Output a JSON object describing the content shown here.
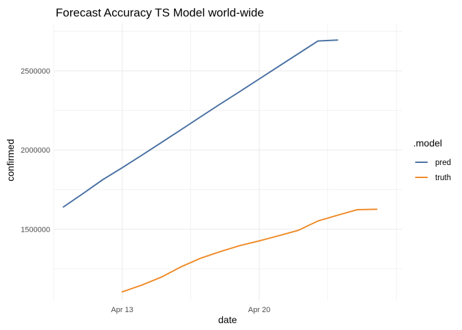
{
  "chart_data": {
    "type": "line",
    "title": "Forecast Accuracy TS Model world-wide",
    "xlabel": "date",
    "ylabel": "confirmed",
    "x_ticks": [
      {
        "day": 13,
        "label": "Apr 13"
      },
      {
        "day": 20,
        "label": "Apr 20"
      }
    ],
    "y_ticks": [
      1500000,
      2000000,
      2500000
    ],
    "xlim": [
      9.5,
      27.3
    ],
    "ylim": [
      1050000,
      2800000
    ],
    "legend": {
      "title": ".model",
      "position": "right"
    },
    "series": [
      {
        "name": "pred",
        "color": "#4a71a3",
        "x": [
          10,
          11,
          12,
          13,
          14,
          15,
          16,
          17,
          18,
          19,
          20,
          21,
          22,
          23,
          24
        ],
        "y": [
          1640000,
          1725000,
          1812000,
          1888000,
          1967000,
          2047000,
          2128000,
          2209000,
          2290000,
          2369000,
          2449000,
          2529000,
          2609000,
          2689000,
          2695000
        ]
      },
      {
        "name": "truth",
        "color": "#ef8a26",
        "x": [
          13,
          14,
          15,
          16,
          17,
          18,
          19,
          20,
          21,
          22,
          23,
          24,
          25,
          26
        ],
        "y": [
          1104000,
          1147000,
          1197000,
          1262000,
          1316000,
          1358000,
          1396000,
          1426000,
          1459000,
          1493000,
          1552000,
          1588000,
          1623000,
          1626000
        ]
      }
    ]
  }
}
